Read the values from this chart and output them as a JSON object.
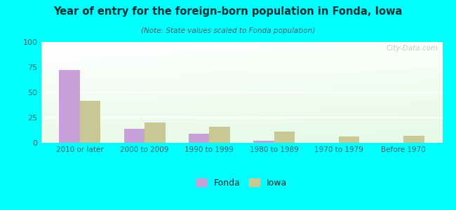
{
  "categories": [
    "2010 or later",
    "2000 to 2009",
    "1990 to 1999",
    "1980 to 1989",
    "1970 to 1979",
    "Before 1970"
  ],
  "fonda_values": [
    72,
    14,
    9,
    2,
    0,
    0
  ],
  "iowa_values": [
    42,
    20,
    16,
    11,
    6,
    7
  ],
  "fonda_color": "#c8a0d8",
  "iowa_color": "#c8c896",
  "title": "Year of entry for the foreign-born population in Fonda, Iowa",
  "subtitle": "(Note: State values scaled to Fonda population)",
  "legend_fonda": "Fonda",
  "legend_iowa": "Iowa",
  "ylim": [
    0,
    100
  ],
  "yticks": [
    0,
    25,
    50,
    75,
    100
  ],
  "bg_outer": "#00ffff",
  "watermark": "City-Data.com",
  "bar_width": 0.32,
  "title_color": "#003333",
  "subtitle_color": "#336666"
}
